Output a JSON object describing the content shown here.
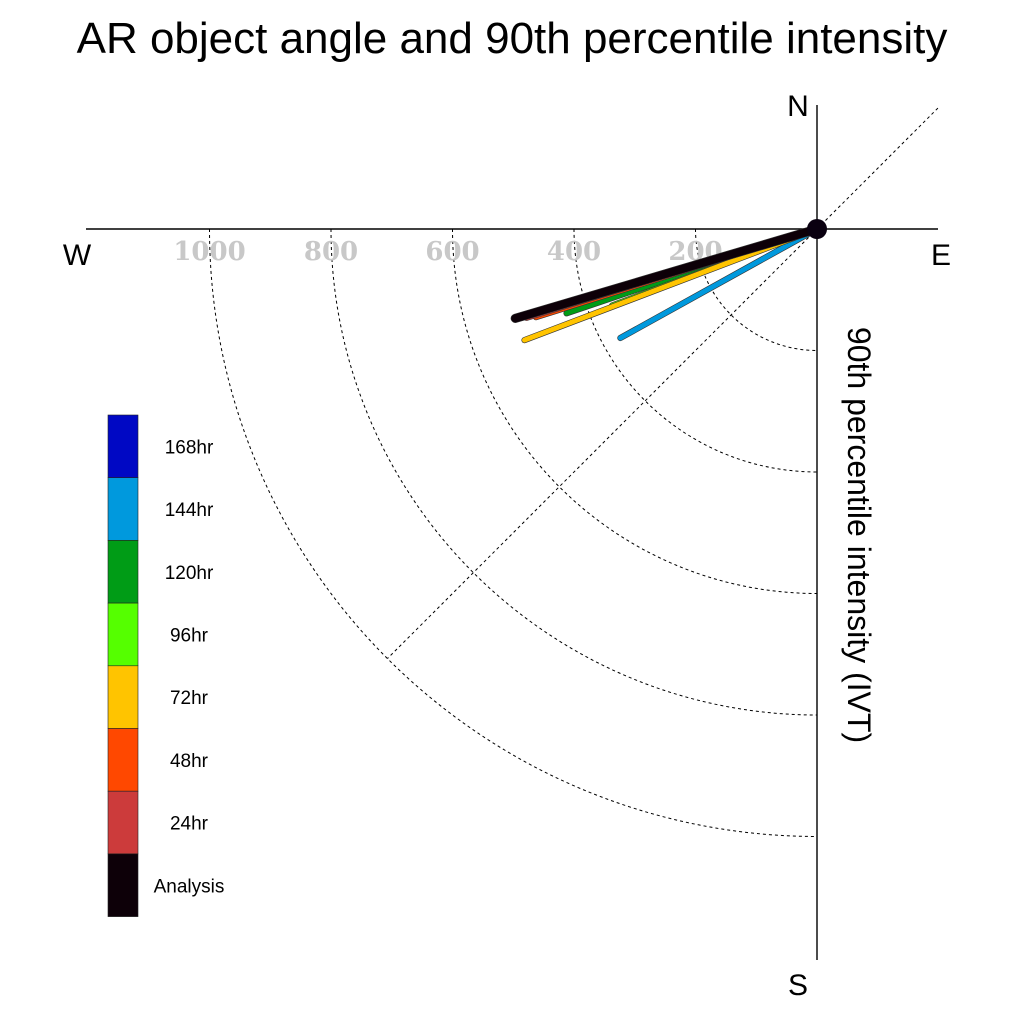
{
  "chart_data": {
    "type": "polar-vector",
    "title": "AR object angle and 90th percentile intensity",
    "ylabel": "90th percentile intensity (IVT)",
    "directions": {
      "north": "N",
      "south": "S",
      "east": "E",
      "west": "W"
    },
    "radial_ticks": [
      {
        "value": 200,
        "label": "200"
      },
      {
        "value": 400,
        "label": "400"
      },
      {
        "value": 600,
        "label": "600"
      },
      {
        "value": 800,
        "label": "800"
      },
      {
        "value": 1000,
        "label": "1000"
      }
    ],
    "radial_range": [
      0,
      1000
    ],
    "angle_unit": "degrees below west",
    "series": [
      {
        "name": "Analysis",
        "color": "#0d0008",
        "intensity": 518,
        "angle_deg": 16.5
      },
      {
        "name": "24hr",
        "color": "#cc3b3b",
        "intensity": 500,
        "angle_deg": 17.0
      },
      {
        "name": "48hr",
        "color": "#ff4800",
        "intensity": 485,
        "angle_deg": 17.4
      },
      {
        "name": "72hr",
        "color": "#ffc400",
        "intensity": 515,
        "angle_deg": 20.8
      },
      {
        "name": "96hr",
        "color": "#55ff00",
        "intensity": 360,
        "angle_deg": 20.5
      },
      {
        "name": "120hr",
        "color": "#009c16",
        "intensity": 435,
        "angle_deg": 18.6
      },
      {
        "name": "144hr",
        "color": "#0099dd",
        "intensity": 370,
        "angle_deg": 29.0
      },
      {
        "name": "168hr",
        "color": "#0008c4",
        "intensity": null,
        "angle_deg": null
      }
    ],
    "legend": [
      {
        "label": "168hr",
        "color": "#0008c4"
      },
      {
        "label": "144hr",
        "color": "#0099dd"
      },
      {
        "label": "120hr",
        "color": "#009c16"
      },
      {
        "label": "96hr",
        "color": "#55ff00"
      },
      {
        "label": "72hr",
        "color": "#ffc400"
      },
      {
        "label": "48hr",
        "color": "#ff4800"
      },
      {
        "label": "24hr",
        "color": "#cc3b3b"
      },
      {
        "label": "Analysis",
        "color": "#0d0008"
      }
    ],
    "legend_position": "left"
  }
}
